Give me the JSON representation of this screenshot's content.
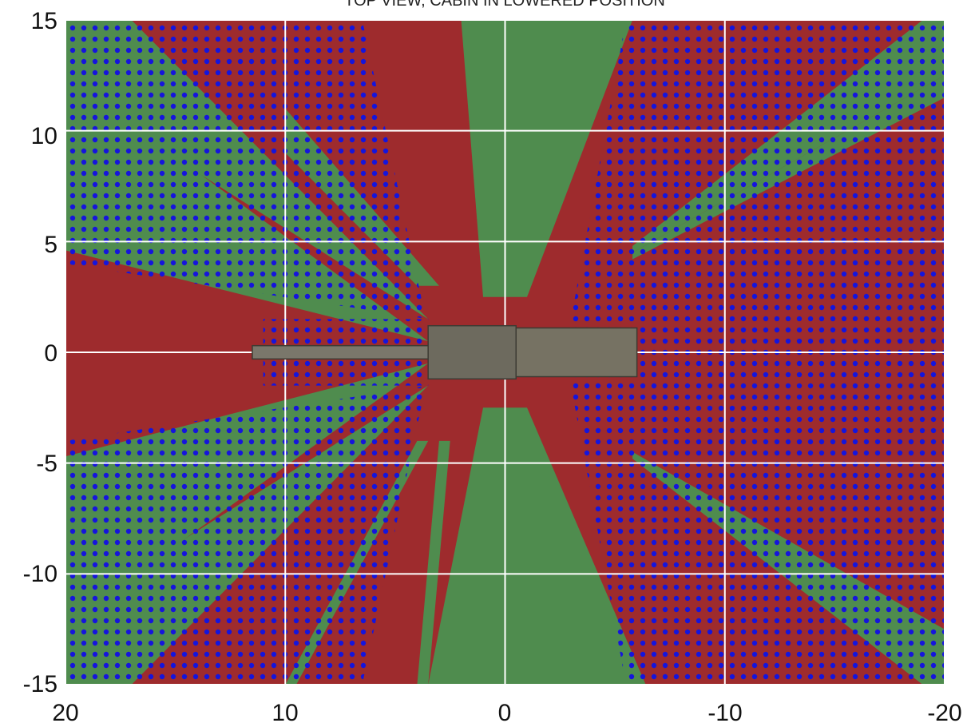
{
  "chart_data": {
    "type": "heatmap",
    "title": "TOP VIEW, CABIN IN LOWERED POSITION",
    "xlabel": "",
    "ylabel": "",
    "xlim": [
      20,
      -20
    ],
    "ylim": [
      -15,
      15
    ],
    "x_ticks": [
      "20",
      "10",
      "0",
      "-10",
      "-20"
    ],
    "y_ticks": [
      "15",
      "10",
      "5",
      "0",
      "-5",
      "-10",
      "-15"
    ],
    "grid": true,
    "legend": "none",
    "colors": {
      "red_zone": "#9e2b2d",
      "green_zone": "#4f8c4e",
      "dot_overlay": "#1515dc",
      "gridline": "#ffffff",
      "vehicle": "#6d6a5e"
    },
    "regions": [
      {
        "color": "red_zone",
        "points": [
          [
            20,
            -15
          ],
          [
            -20,
            -15
          ],
          [
            -20,
            15
          ],
          [
            20,
            15
          ]
        ]
      },
      {
        "color": "green_zone",
        "points": [
          [
            20,
            12.5
          ],
          [
            3.5,
            0.5
          ],
          [
            20,
            4.6
          ]
        ]
      },
      {
        "color": "green_zone",
        "points": [
          [
            20,
            -4.7
          ],
          [
            3.5,
            -0.5
          ],
          [
            20,
            -12.3
          ]
        ]
      },
      {
        "color": "green_zone",
        "points": [
          [
            20,
            15
          ],
          [
            17,
            15
          ],
          [
            3.5,
            1.5
          ],
          [
            20,
            11.9
          ]
        ]
      },
      {
        "color": "green_zone",
        "points": [
          [
            20,
            -15
          ],
          [
            17,
            -15
          ],
          [
            3.5,
            -1.5
          ],
          [
            20,
            -11.8
          ]
        ]
      },
      {
        "color": "green_zone",
        "points": [
          [
            -5.8,
            15
          ],
          [
            -1,
            2.5
          ],
          [
            1,
            2.5
          ],
          [
            2,
            15
          ]
        ]
      },
      {
        "color": "green_zone",
        "points": [
          [
            -6.4,
            -15
          ],
          [
            -1,
            -2.5
          ],
          [
            1,
            -2.5
          ],
          [
            3.5,
            -15
          ]
        ]
      },
      {
        "color": "green_zone",
        "points": [
          [
            10,
            -15
          ],
          [
            9.5,
            -15
          ],
          [
            3.5,
            -4
          ],
          [
            4,
            -4
          ]
        ]
      },
      {
        "color": "green_zone",
        "points": [
          [
            4,
            -15
          ],
          [
            3.5,
            -15
          ],
          [
            2.5,
            -4
          ],
          [
            3,
            -4
          ]
        ]
      },
      {
        "color": "green_zone",
        "points": [
          [
            10,
            11
          ],
          [
            3,
            3
          ],
          [
            4,
            3
          ],
          [
            10,
            9
          ]
        ]
      },
      {
        "color": "green_zone",
        "points": [
          [
            -5.8,
            4.5
          ],
          [
            -20,
            12.5
          ],
          [
            -20,
            15
          ],
          [
            -19,
            15
          ],
          [
            -5.8,
            4.8
          ]
        ]
      },
      {
        "color": "green_zone",
        "points": [
          [
            -5.8,
            -4.5
          ],
          [
            -20,
            -12.5
          ],
          [
            -20,
            -15
          ],
          [
            -19,
            -15
          ],
          [
            -5.8,
            -4.8
          ]
        ]
      },
      {
        "color": "green_zone",
        "points": [
          [
            -5.8,
            4.2
          ],
          [
            -20,
            11.5
          ],
          [
            -20,
            12.5
          ],
          [
            -5.8,
            4.5
          ]
        ]
      }
    ],
    "dotted_regions": [
      {
        "points": [
          [
            20,
            15
          ],
          [
            10,
            15
          ],
          [
            3.5,
            1.5
          ],
          [
            20,
            4
          ]
        ]
      },
      {
        "points": [
          [
            20,
            -15
          ],
          [
            10,
            -15
          ],
          [
            3.5,
            -1.5
          ],
          [
            20,
            -4
          ]
        ]
      },
      {
        "points": [
          [
            10,
            15
          ],
          [
            6.5,
            15
          ],
          [
            3.5,
            1
          ]
        ]
      },
      {
        "points": [
          [
            10,
            -15
          ],
          [
            6.5,
            -15
          ],
          [
            3.5,
            -1
          ]
        ]
      },
      {
        "points": [
          [
            -5.5,
            15
          ],
          [
            -20,
            15
          ],
          [
            -20,
            -15
          ],
          [
            -5.5,
            -15
          ],
          [
            -3,
            -1.5
          ],
          [
            -3,
            1.5
          ]
        ]
      },
      {
        "points": [
          [
            11,
            1.5
          ],
          [
            3.5,
            1.5
          ],
          [
            3.5,
            -1.5
          ],
          [
            11,
            -1.5
          ]
        ]
      }
    ],
    "vehicle": {
      "boom": {
        "x": [
          2.5,
          11.5
        ],
        "y": [
          -0.3,
          0.3
        ]
      },
      "crane_base": {
        "x": [
          -0.5,
          3.5
        ],
        "y": [
          -1.2,
          1.2
        ]
      },
      "cabin": {
        "x": [
          -6,
          -0.5
        ],
        "y": [
          -1.1,
          1.1
        ]
      }
    }
  }
}
